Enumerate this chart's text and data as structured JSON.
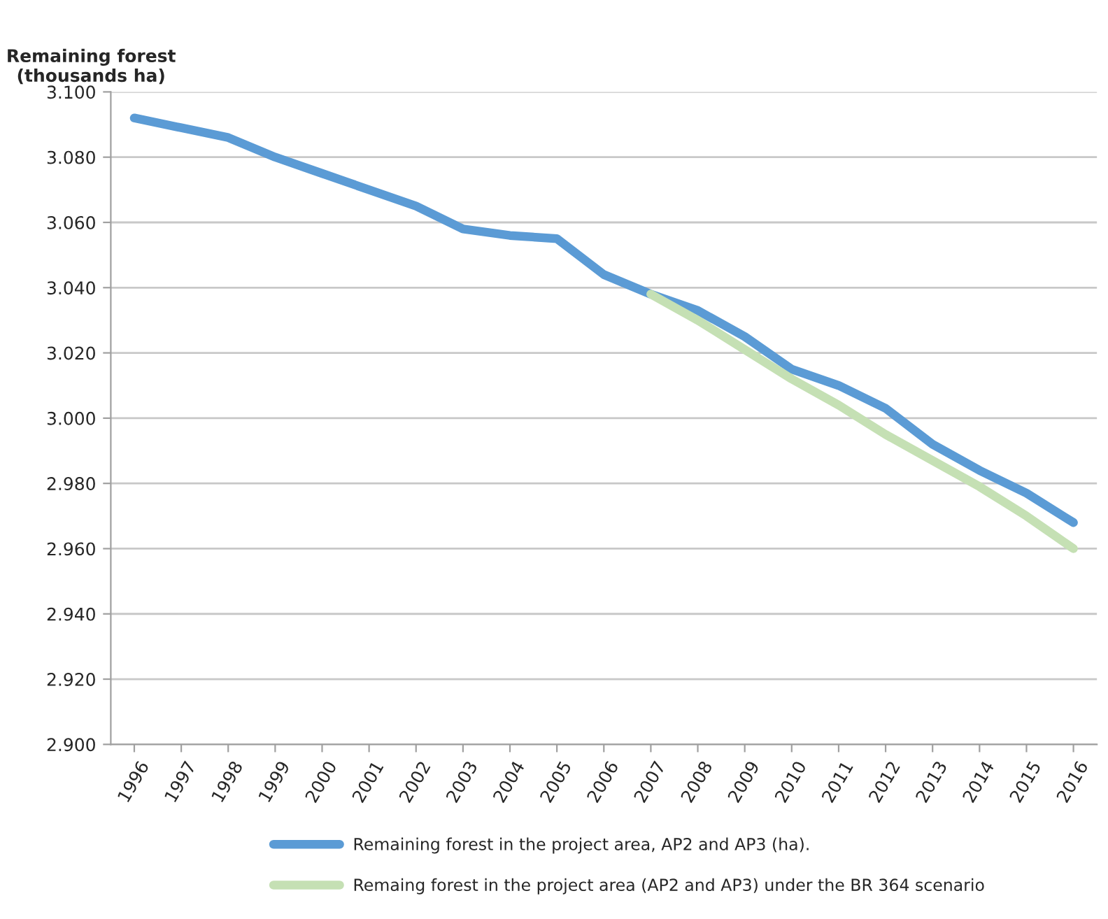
{
  "chart_data": {
    "type": "line",
    "ylabel": "Remaining forest\n(thousands ha)",
    "categories": [
      "1996",
      "1997",
      "1998",
      "1999",
      "2000",
      "2001",
      "2002",
      "2003",
      "2004",
      "2005",
      "2006",
      "2007",
      "2008",
      "2009",
      "2010",
      "2011",
      "2012",
      "2013",
      "2014",
      "2015",
      "2016"
    ],
    "series": [
      {
        "name": "Remaining forest in the project area, AP2 and AP3 (ha).",
        "color": "#5b9bd5",
        "values": [
          3.092,
          3.089,
          3.086,
          3.08,
          3.075,
          3.07,
          3.065,
          3.058,
          3.056,
          3.055,
          3.044,
          3.038,
          3.033,
          3.025,
          3.015,
          3.01,
          3.003,
          2.992,
          2.984,
          2.977,
          2.968
        ]
      },
      {
        "name": "Remaing forest in the project area (AP2 and AP3) under the BR 364 scenario",
        "color": "#c5e0b4",
        "values": [
          null,
          null,
          null,
          null,
          null,
          null,
          null,
          null,
          null,
          null,
          null,
          3.038,
          3.03,
          3.021,
          3.012,
          3.004,
          2.995,
          2.987,
          2.979,
          2.97,
          2.96
        ]
      }
    ],
    "ylim": [
      2.9,
      3.1
    ],
    "yticks": [
      {
        "value": 2.9,
        "label": "2.900"
      },
      {
        "value": 2.92,
        "label": "2.920"
      },
      {
        "value": 2.94,
        "label": "2.940"
      },
      {
        "value": 2.96,
        "label": "2.960"
      },
      {
        "value": 2.98,
        "label": "2.980"
      },
      {
        "value": 3.0,
        "label": "3.000"
      },
      {
        "value": 3.02,
        "label": "3.020"
      },
      {
        "value": 3.04,
        "label": "3.040"
      },
      {
        "value": 3.06,
        "label": "3.060"
      },
      {
        "value": 3.08,
        "label": "3.080"
      },
      {
        "value": 3.1,
        "label": "3.100"
      }
    ],
    "grid": "y",
    "legend": "bottom",
    "marker": "none",
    "line_style": "solid"
  }
}
